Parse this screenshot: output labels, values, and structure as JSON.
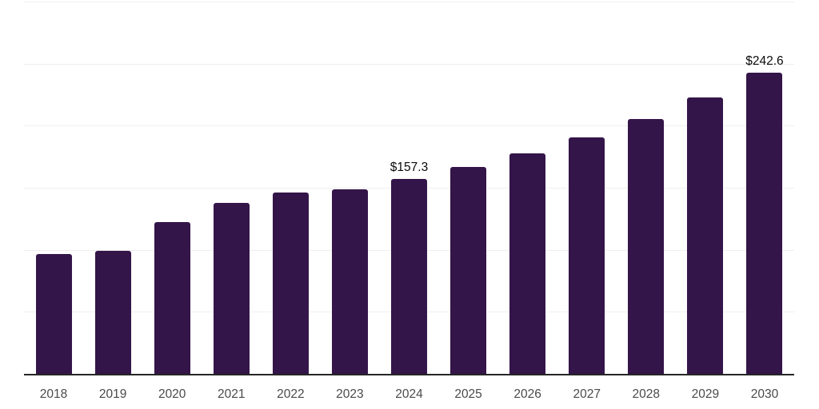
{
  "chart_data": {
    "type": "bar",
    "title": "",
    "xlabel": "",
    "ylabel": "",
    "categories": [
      "2018",
      "2019",
      "2020",
      "2021",
      "2022",
      "2023",
      "2024",
      "2025",
      "2026",
      "2027",
      "2028",
      "2029",
      "2030"
    ],
    "values": [
      96.4,
      99.0,
      122.1,
      138.1,
      146.4,
      149.0,
      157.3,
      166.9,
      177.8,
      190.6,
      205.4,
      222.7,
      242.6
    ],
    "point_labels": [
      {
        "category": "2024",
        "text": "$157.3"
      },
      {
        "category": "2030",
        "text": "$242.6"
      }
    ],
    "ylim": [
      0,
      300
    ],
    "gridline_step": 50,
    "grid": "horizontal",
    "legend": "none",
    "y_tick_labels_visible": false,
    "colors": {
      "bar": "#341549",
      "gridline": "#efefef",
      "axis_line": "#262626",
      "x_tick_label": "#4a4a4a",
      "value_label": "#0a0a0a"
    }
  }
}
